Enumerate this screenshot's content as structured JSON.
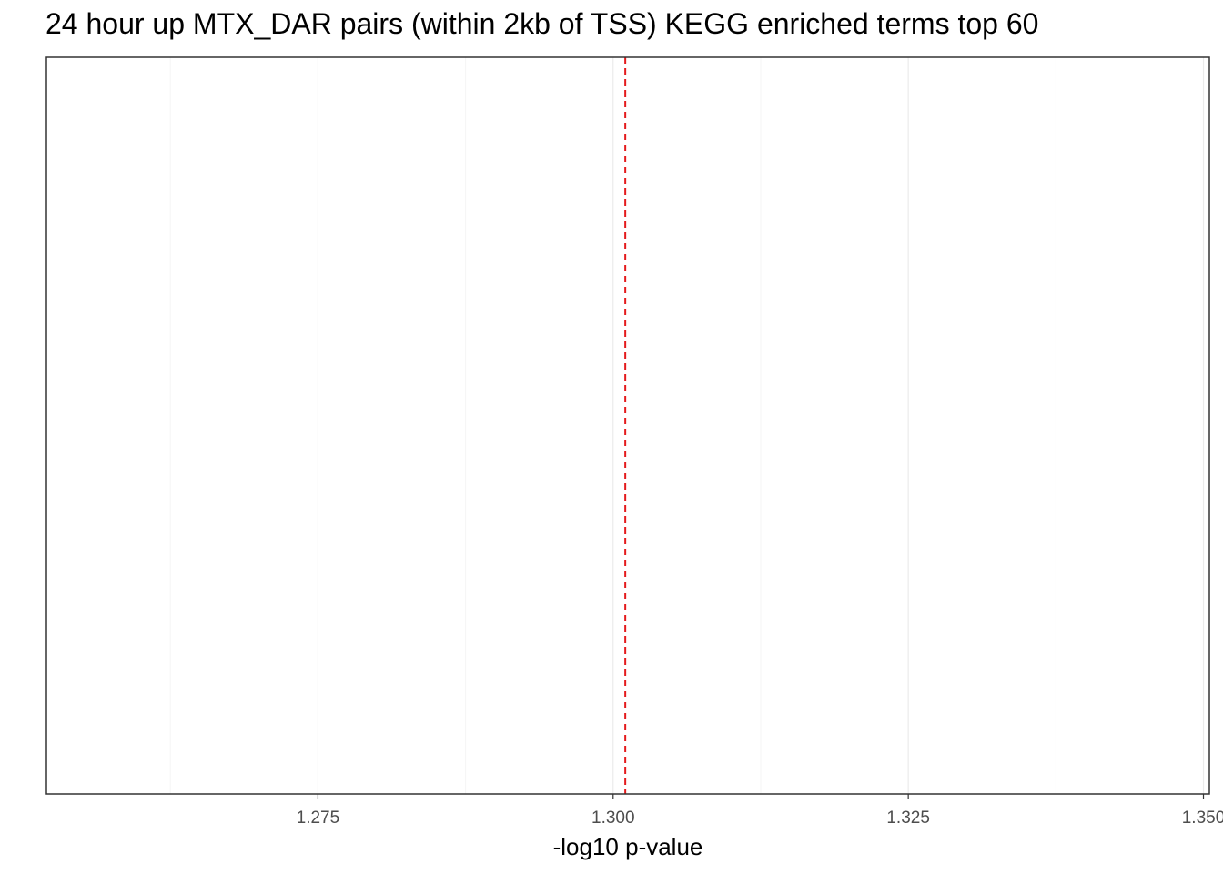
{
  "chart_data": {
    "type": "bar",
    "title": "24 hour up MTX_DAR pairs (within 2kb of TSS) KEGG enriched terms top 60",
    "xlabel": "-log10 p-value",
    "ylabel": "",
    "categories": [],
    "values": [],
    "orientation": "horizontal",
    "xlim": [
      1.252,
      1.3505
    ],
    "x_ticks": [
      1.275,
      1.3,
      1.325,
      1.35
    ],
    "x_tick_labels": [
      "1.275",
      "1.300",
      "1.325",
      "1.350"
    ],
    "x_minor_ticks": [
      1.2625,
      1.2875,
      1.3125,
      1.3375
    ],
    "reference_line": {
      "x": 1.30103,
      "style": "dashed",
      "color": "#e41a1c"
    },
    "grid": "vertical",
    "legend": "none",
    "colors": {
      "panel_border": "#333333",
      "grid_major": "#ebebeb",
      "grid_minor": "#f5f5f5"
    }
  }
}
